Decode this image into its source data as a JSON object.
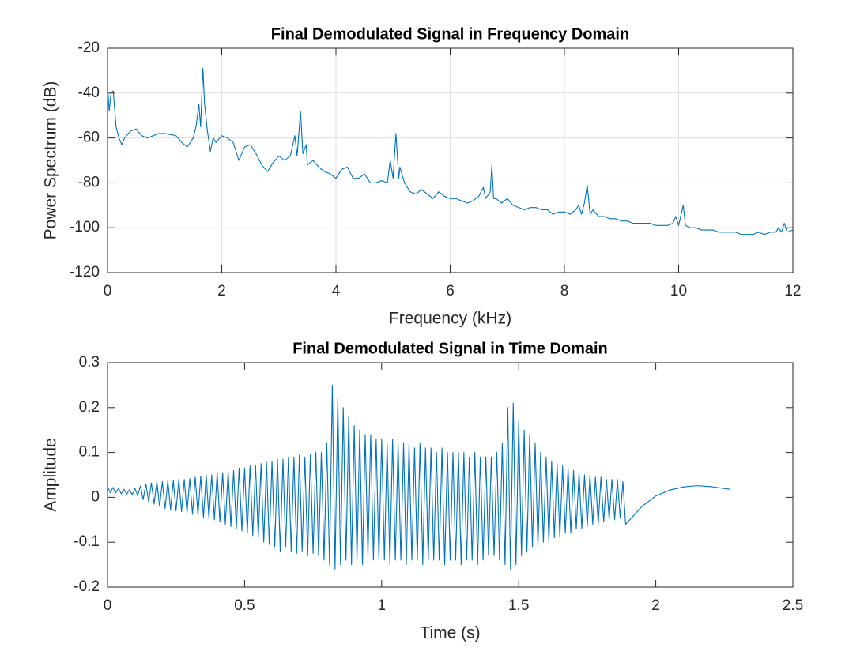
{
  "chart_data": [
    {
      "type": "line",
      "title": "Final Demodulated Signal in Frequency Domain",
      "xlabel": "Frequency (kHz)",
      "ylabel": "Power Spectrum (dB)",
      "xlim": [
        0,
        12
      ],
      "xticks": [
        0,
        2,
        4,
        6,
        8,
        10,
        12
      ],
      "ylim": [
        -120,
        -20
      ],
      "yticks": [
        -120,
        -100,
        -80,
        -60,
        -40,
        -20
      ],
      "grid": true,
      "series": [
        {
          "color": "#0072bd",
          "x": [
            0,
            0.03,
            0.06,
            0.1,
            0.15,
            0.2,
            0.25,
            0.3,
            0.4,
            0.5,
            0.6,
            0.7,
            0.8,
            0.9,
            1.0,
            1.1,
            1.2,
            1.3,
            1.4,
            1.5,
            1.55,
            1.6,
            1.63,
            1.67,
            1.7,
            1.75,
            1.8,
            1.85,
            1.9,
            2.0,
            2.1,
            2.2,
            2.3,
            2.4,
            2.5,
            2.6,
            2.7,
            2.8,
            2.9,
            3.0,
            3.1,
            3.2,
            3.28,
            3.32,
            3.38,
            3.42,
            3.48,
            3.5,
            3.6,
            3.7,
            3.8,
            3.9,
            4.0,
            4.1,
            4.2,
            4.3,
            4.4,
            4.5,
            4.6,
            4.7,
            4.8,
            4.9,
            4.95,
            5.0,
            5.05,
            5.1,
            5.12,
            5.2,
            5.3,
            5.4,
            5.5,
            5.6,
            5.7,
            5.8,
            5.9,
            6.0,
            6.1,
            6.2,
            6.3,
            6.4,
            6.5,
            6.58,
            6.62,
            6.7,
            6.73,
            6.76,
            6.8,
            6.9,
            7.0,
            7.1,
            7.2,
            7.3,
            7.4,
            7.5,
            7.6,
            7.7,
            7.8,
            7.9,
            8.0,
            8.1,
            8.2,
            8.25,
            8.3,
            8.35,
            8.4,
            8.45,
            8.5,
            8.6,
            8.7,
            8.8,
            8.9,
            9.0,
            9.1,
            9.2,
            9.3,
            9.4,
            9.5,
            9.6,
            9.7,
            9.8,
            9.9,
            9.95,
            10.0,
            10.08,
            10.12,
            10.2,
            10.3,
            10.4,
            10.5,
            10.6,
            10.7,
            10.8,
            10.9,
            11.0,
            11.1,
            11.2,
            11.3,
            11.4,
            11.5,
            11.6,
            11.7,
            11.75,
            11.8,
            11.85,
            11.9,
            12.0
          ],
          "values": [
            -37,
            -48,
            -40,
            -39,
            -55,
            -60,
            -63,
            -60,
            -57,
            -56,
            -59,
            -60,
            -59,
            -58,
            -58,
            -58.5,
            -59,
            -62,
            -64,
            -60,
            -55,
            -45,
            -55,
            -29,
            -45,
            -57,
            -66,
            -60,
            -62,
            -59,
            -60,
            -62,
            -70,
            -64,
            -63,
            -67,
            -72,
            -75,
            -71,
            -68,
            -70,
            -68,
            -59,
            -68,
            -48,
            -67,
            -63,
            -72,
            -70,
            -73,
            -75,
            -76,
            -78,
            -74,
            -73,
            -78,
            -78,
            -76,
            -80,
            -80,
            -79,
            -80,
            -70,
            -78,
            -58,
            -78,
            -73,
            -80,
            -84,
            -85,
            -83,
            -85,
            -87,
            -84,
            -86,
            -87,
            -87,
            -88,
            -89,
            -88,
            -86,
            -82,
            -87,
            -84,
            -72,
            -87,
            -87,
            -89,
            -87,
            -90,
            -91,
            -92,
            -91,
            -91,
            -92,
            -92,
            -94,
            -93,
            -93,
            -94,
            -92,
            -90,
            -94,
            -89,
            -81,
            -94,
            -92,
            -95,
            -95,
            -96,
            -96,
            -97,
            -97,
            -98,
            -98,
            -98,
            -98,
            -99,
            -99,
            -99,
            -98,
            -95,
            -99,
            -90,
            -99,
            -100,
            -100,
            -101,
            -101,
            -101,
            -102,
            -102,
            -102,
            -102,
            -103,
            -103,
            -103,
            -102,
            -103,
            -102,
            -102,
            -100,
            -102,
            -98,
            -102,
            -101
          ]
        }
      ]
    },
    {
      "type": "line",
      "title": "Final Demodulated Signal in Time Domain",
      "xlabel": "Time (s)",
      "ylabel": "Amplitude",
      "xlim": [
        0,
        2.5
      ],
      "xticks": [
        0,
        0.5,
        1,
        1.5,
        2,
        2.5
      ],
      "ylim": [
        -0.2,
        0.3
      ],
      "yticks": [
        -0.2,
        -0.1,
        0,
        0.1,
        0.2,
        0.3
      ],
      "grid": false,
      "series": [
        {
          "color": "#0072bd",
          "x": [
            0,
            0.01,
            0.02,
            0.03,
            0.04,
            0.05,
            0.06,
            0.07,
            0.08,
            0.09,
            0.1,
            0.11,
            0.12,
            0.13,
            0.14,
            0.15,
            0.16,
            0.17,
            0.18,
            0.19,
            0.2,
            0.21,
            0.22,
            0.23,
            0.24,
            0.25,
            0.26,
            0.27,
            0.28,
            0.29,
            0.3,
            0.31,
            0.32,
            0.33,
            0.34,
            0.35,
            0.36,
            0.37,
            0.38,
            0.39,
            0.4,
            0.41,
            0.42,
            0.43,
            0.44,
            0.45,
            0.46,
            0.47,
            0.48,
            0.49,
            0.5,
            0.51,
            0.52,
            0.53,
            0.54,
            0.55,
            0.56,
            0.57,
            0.58,
            0.59,
            0.6,
            0.61,
            0.62,
            0.63,
            0.64,
            0.65,
            0.66,
            0.67,
            0.68,
            0.69,
            0.7,
            0.71,
            0.72,
            0.73,
            0.74,
            0.75,
            0.76,
            0.77,
            0.78,
            0.79,
            0.8,
            0.81,
            0.82,
            0.83,
            0.84,
            0.85,
            0.86,
            0.87,
            0.88,
            0.89,
            0.9,
            0.91,
            0.92,
            0.93,
            0.94,
            0.95,
            0.96,
            0.97,
            0.98,
            0.99,
            1.0,
            1.01,
            1.02,
            1.03,
            1.04,
            1.05,
            1.06,
            1.07,
            1.08,
            1.09,
            1.1,
            1.11,
            1.12,
            1.13,
            1.14,
            1.15,
            1.16,
            1.17,
            1.18,
            1.19,
            1.2,
            1.21,
            1.22,
            1.23,
            1.24,
            1.25,
            1.26,
            1.27,
            1.28,
            1.29,
            1.3,
            1.31,
            1.32,
            1.33,
            1.34,
            1.35,
            1.36,
            1.37,
            1.38,
            1.39,
            1.4,
            1.41,
            1.42,
            1.43,
            1.44,
            1.45,
            1.46,
            1.47,
            1.48,
            1.49,
            1.5,
            1.51,
            1.52,
            1.53,
            1.54,
            1.55,
            1.56,
            1.57,
            1.58,
            1.59,
            1.6,
            1.61,
            1.62,
            1.63,
            1.64,
            1.65,
            1.66,
            1.67,
            1.68,
            1.69,
            1.7,
            1.71,
            1.72,
            1.73,
            1.74,
            1.75,
            1.76,
            1.77,
            1.78,
            1.79,
            1.8,
            1.81,
            1.82,
            1.83,
            1.84,
            1.85,
            1.86,
            1.87,
            1.88,
            1.89,
            1.92,
            1.95,
            2.0,
            2.05,
            2.1,
            2.15,
            2.2,
            2.27
          ],
          "values": [
            0.025,
            0.01,
            0.022,
            0.01,
            0.02,
            0.008,
            0.018,
            0.007,
            0.017,
            0.006,
            0.02,
            0.004,
            0.025,
            -0.005,
            0.03,
            -0.01,
            0.032,
            -0.015,
            0.035,
            -0.02,
            0.035,
            -0.025,
            0.037,
            -0.028,
            0.038,
            -0.03,
            0.04,
            -0.032,
            0.04,
            -0.035,
            0.042,
            -0.038,
            0.045,
            -0.04,
            0.047,
            -0.045,
            0.05,
            -0.048,
            0.05,
            -0.05,
            0.055,
            -0.055,
            0.055,
            -0.06,
            0.058,
            -0.065,
            0.06,
            -0.07,
            0.065,
            -0.075,
            0.065,
            -0.08,
            0.07,
            -0.085,
            0.072,
            -0.09,
            0.075,
            -0.1,
            0.078,
            -0.105,
            0.08,
            -0.11,
            0.085,
            -0.12,
            0.085,
            -0.11,
            0.09,
            -0.12,
            0.09,
            -0.125,
            0.095,
            -0.12,
            0.09,
            -0.13,
            0.095,
            -0.125,
            0.1,
            -0.13,
            0.1,
            -0.14,
            0.12,
            -0.15,
            0.25,
            -0.16,
            0.22,
            -0.15,
            0.2,
            -0.14,
            0.18,
            -0.15,
            0.16,
            -0.14,
            0.15,
            -0.15,
            0.14,
            -0.13,
            0.14,
            -0.14,
            0.13,
            -0.14,
            0.13,
            -0.14,
            0.12,
            -0.15,
            0.13,
            -0.14,
            0.12,
            -0.14,
            0.12,
            -0.15,
            0.12,
            -0.14,
            0.11,
            -0.14,
            0.12,
            -0.15,
            0.11,
            -0.14,
            0.11,
            -0.14,
            0.1,
            -0.14,
            0.11,
            -0.15,
            0.1,
            -0.14,
            0.1,
            -0.14,
            0.1,
            -0.15,
            0.1,
            -0.14,
            0.09,
            -0.14,
            0.1,
            -0.15,
            0.09,
            -0.14,
            0.09,
            -0.13,
            0.09,
            -0.13,
            0.1,
            -0.14,
            0.12,
            -0.15,
            0.2,
            -0.16,
            0.21,
            -0.15,
            0.17,
            -0.13,
            0.15,
            -0.12,
            0.14,
            -0.11,
            0.12,
            -0.11,
            0.1,
            -0.1,
            0.09,
            -0.1,
            0.08,
            -0.09,
            0.075,
            -0.09,
            0.07,
            -0.08,
            0.065,
            -0.08,
            0.06,
            -0.07,
            0.055,
            -0.07,
            0.05,
            -0.065,
            0.05,
            -0.06,
            0.045,
            -0.06,
            0.045,
            -0.055,
            0.04,
            -0.05,
            0.04,
            -0.05,
            0.04,
            -0.045,
            0.035,
            -0.06,
            -0.04,
            -0.02,
            0.003,
            0.016,
            0.023,
            0.026,
            0.024,
            0.018
          ]
        }
      ]
    }
  ]
}
